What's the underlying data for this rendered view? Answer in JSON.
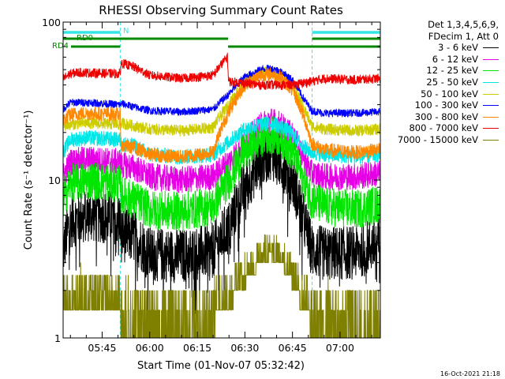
{
  "chart_data": {
    "type": "line",
    "title": "RHESSI Observing Summary Count Rates",
    "xlabel": "Start Time (01-Nov-07 05:32:42)",
    "ylabel": "Count Rate (s⁻¹ detector⁻¹)",
    "yscale": "log",
    "ylim": [
      1,
      100
    ],
    "xlim": [
      "05:32:42",
      "07:12:42"
    ],
    "x_ticks": [
      "05:45",
      "06:00",
      "06:15",
      "06:30",
      "06:45",
      "07:00"
    ],
    "y_ticks": [
      "1",
      "10",
      "100"
    ],
    "legend_header": [
      "Det 1,3,4,5,6,9,",
      "FDecim 1, Att 0"
    ],
    "legend_placement": "top-right",
    "timestamp": "16-Oct-2021 21:18",
    "flag_labels": [
      "N",
      "RD0",
      "RD4"
    ],
    "night_intervals": [
      [
        "05:32:42",
        "05:50:42"
      ],
      [
        "06:51:12",
        "07:12:42"
      ]
    ],
    "flag_bars": [
      {
        "label": "N",
        "color": "#33e6e6",
        "intervals": [
          [
            "05:32:42",
            "05:50:42"
          ],
          [
            "06:51:12",
            "07:12:42"
          ]
        ]
      },
      {
        "label": "RD0",
        "color": "#008800",
        "intervals": [
          [
            "05:32:42",
            "06:24:42"
          ],
          [
            "06:51:12",
            "07:12:42"
          ]
        ]
      },
      {
        "label": "RD4",
        "color": "#008800",
        "intervals": [
          [
            "05:35:12",
            "05:50:42"
          ],
          [
            "06:24:42",
            "06:51:12"
          ],
          [
            "06:51:12",
            "07:12:42"
          ]
        ]
      }
    ],
    "series": [
      {
        "name": "3 - 6 keV",
        "color": "#000000",
        "noise": 0.7,
        "points": [
          [
            "05:32:42",
            3.5
          ],
          [
            "05:35:00",
            5.5
          ],
          [
            "05:40:00",
            6.0
          ],
          [
            "05:50:40",
            5.8
          ],
          [
            "05:51:00",
            4.5
          ],
          [
            "05:55:00",
            4.4
          ],
          [
            "06:00:00",
            3.4
          ],
          [
            "06:10:00",
            3.3
          ],
          [
            "06:20:00",
            3.6
          ],
          [
            "06:25:00",
            5.0
          ],
          [
            "06:30:00",
            9.0
          ],
          [
            "06:35:00",
            13.0
          ],
          [
            "06:38:00",
            15.0
          ],
          [
            "06:41:00",
            13.5
          ],
          [
            "06:45:00",
            10.0
          ],
          [
            "06:48:00",
            6.0
          ],
          [
            "06:51:00",
            3.6
          ],
          [
            "06:55:00",
            3.4
          ],
          [
            "07:05:00",
            3.5
          ],
          [
            "07:12:00",
            4.0
          ]
        ]
      },
      {
        "name": "6 - 12 keV",
        "color": "#e600e6",
        "noise": 0.35,
        "points": [
          [
            "05:32:42",
            10.5
          ],
          [
            "05:35:00",
            13.0
          ],
          [
            "05:40:00",
            13.5
          ],
          [
            "05:50:40",
            13.0
          ],
          [
            "05:51:00",
            12.5
          ],
          [
            "05:55:00",
            12.0
          ],
          [
            "06:00:00",
            10.5
          ],
          [
            "06:10:00",
            10.0
          ],
          [
            "06:20:00",
            10.5
          ],
          [
            "06:25:00",
            13.0
          ],
          [
            "06:30:00",
            17.0
          ],
          [
            "06:35:00",
            22.0
          ],
          [
            "06:38:00",
            24.0
          ],
          [
            "06:41:00",
            22.5
          ],
          [
            "06:45:00",
            19.0
          ],
          [
            "06:48:00",
            14.5
          ],
          [
            "06:51:00",
            11.0
          ],
          [
            "06:55:00",
            10.5
          ],
          [
            "07:05:00",
            10.5
          ],
          [
            "07:12:00",
            11.0
          ]
        ]
      },
      {
        "name": "12 - 25 keV",
        "color": "#00e600",
        "noise": 0.5,
        "points": [
          [
            "05:32:42",
            7.5
          ],
          [
            "05:35:00",
            9.5
          ],
          [
            "05:40:00",
            10.0
          ],
          [
            "05:50:40",
            9.5
          ],
          [
            "05:51:00",
            8.0
          ],
          [
            "05:55:00",
            7.5
          ],
          [
            "06:00:00",
            6.5
          ],
          [
            "06:10:00",
            6.3
          ],
          [
            "06:20:00",
            6.8
          ],
          [
            "06:25:00",
            10.0
          ],
          [
            "06:30:00",
            15.0
          ],
          [
            "06:35:00",
            18.5
          ],
          [
            "06:38:00",
            19.5
          ],
          [
            "06:41:00",
            18.5
          ],
          [
            "06:45:00",
            15.0
          ],
          [
            "06:48:00",
            10.5
          ],
          [
            "06:51:00",
            7.5
          ],
          [
            "06:55:00",
            6.8
          ],
          [
            "07:05:00",
            6.5
          ],
          [
            "07:12:00",
            7.0
          ]
        ]
      },
      {
        "name": "25 - 50 keV",
        "color": "#00e6e6",
        "noise": 0.2,
        "points": [
          [
            "05:32:42",
            15.0
          ],
          [
            "05:35:00",
            18.0
          ],
          [
            "05:40:00",
            18.5
          ],
          [
            "05:50:40",
            18.0
          ],
          [
            "05:51:00",
            17.0
          ],
          [
            "05:55:00",
            16.5
          ],
          [
            "06:00:00",
            14.5
          ],
          [
            "06:10:00",
            14.0
          ],
          [
            "06:20:00",
            14.5
          ],
          [
            "06:25:00",
            17.5
          ],
          [
            "06:30:00",
            21.0
          ],
          [
            "06:35:00",
            22.5
          ],
          [
            "06:38:00",
            23.0
          ],
          [
            "06:41:00",
            22.0
          ],
          [
            "06:45:00",
            19.5
          ],
          [
            "06:48:00",
            16.5
          ],
          [
            "06:51:00",
            15.0
          ],
          [
            "06:55:00",
            14.5
          ],
          [
            "07:05:00",
            14.0
          ],
          [
            "07:12:00",
            14.5
          ]
        ]
      },
      {
        "name": "50 - 100 keV",
        "color": "#cccc00",
        "noise": 0.15,
        "points": [
          [
            "05:32:42",
            22.0
          ],
          [
            "05:35:00",
            22.5
          ],
          [
            "05:40:00",
            23.0
          ],
          [
            "05:50:40",
            22.5
          ],
          [
            "05:51:00",
            23.0
          ],
          [
            "05:55:00",
            22.0
          ],
          [
            "06:00:00",
            21.0
          ],
          [
            "06:10:00",
            20.5
          ],
          [
            "06:20:00",
            21.5
          ],
          [
            "06:25:00",
            30.0
          ],
          [
            "06:30:00",
            42.0
          ],
          [
            "06:35:00",
            48.0
          ],
          [
            "06:38:00",
            49.0
          ],
          [
            "06:41:00",
            47.0
          ],
          [
            "06:45:00",
            40.0
          ],
          [
            "06:48:00",
            30.0
          ],
          [
            "06:51:00",
            22.0
          ],
          [
            "06:55:00",
            21.0
          ],
          [
            "07:05:00",
            20.5
          ],
          [
            "07:12:00",
            21.0
          ]
        ]
      },
      {
        "name": "100 - 300 keV",
        "color": "#0000ff",
        "noise": 0.1,
        "points": [
          [
            "05:32:42",
            28.0
          ],
          [
            "05:35:00",
            31.0
          ],
          [
            "05:40:00",
            31.0
          ],
          [
            "05:50:40",
            30.0
          ],
          [
            "05:51:00",
            30.5
          ],
          [
            "05:55:00",
            29.0
          ],
          [
            "06:00:00",
            27.5
          ],
          [
            "06:10:00",
            27.0
          ],
          [
            "06:20:00",
            28.0
          ],
          [
            "06:25:00",
            35.0
          ],
          [
            "06:30:00",
            45.0
          ],
          [
            "06:35:00",
            50.0
          ],
          [
            "06:38:00",
            51.0
          ],
          [
            "06:41:00",
            49.0
          ],
          [
            "06:45:00",
            43.0
          ],
          [
            "06:48:00",
            34.0
          ],
          [
            "06:51:00",
            27.5
          ],
          [
            "06:55:00",
            26.5
          ],
          [
            "07:05:00",
            26.5
          ],
          [
            "07:12:00",
            27.0
          ]
        ]
      },
      {
        "name": "300 - 800 keV",
        "color": "#ff8800",
        "noise": 0.18,
        "points": [
          [
            "05:32:42",
            24.0
          ],
          [
            "05:35:00",
            26.0
          ],
          [
            "05:40:00",
            26.5
          ],
          [
            "05:50:40",
            26.0
          ],
          [
            "05:51:00",
            16.5
          ],
          [
            "05:55:00",
            16.0
          ],
          [
            "06:00:00",
            14.5
          ],
          [
            "06:10:00",
            14.0
          ],
          [
            "06:20:00",
            15.0
          ],
          [
            "06:25:00",
            27.0
          ],
          [
            "06:30:00",
            40.0
          ],
          [
            "06:35:00",
            46.0
          ],
          [
            "06:38:00",
            47.0
          ],
          [
            "06:41:00",
            45.0
          ],
          [
            "06:45:00",
            37.0
          ],
          [
            "06:48:00",
            27.0
          ],
          [
            "06:51:00",
            17.0
          ],
          [
            "06:55:00",
            15.5
          ],
          [
            "07:05:00",
            15.0
          ],
          [
            "07:12:00",
            15.5
          ]
        ]
      },
      {
        "name": "800 - 7000 keV",
        "color": "#ee0000",
        "noise": 0.12,
        "points": [
          [
            "05:32:42",
            44.0
          ],
          [
            "05:35:00",
            47.0
          ],
          [
            "05:37:00",
            48.0
          ],
          [
            "05:50:40",
            47.0
          ],
          [
            "05:51:00",
            55.0
          ],
          [
            "05:55:00",
            52.0
          ],
          [
            "06:00:00",
            46.0
          ],
          [
            "06:10:00",
            44.0
          ],
          [
            "06:20:00",
            46.0
          ],
          [
            "06:24:30",
            60.0
          ],
          [
            "06:24:50",
            42.0
          ],
          [
            "06:35:00",
            40.0
          ],
          [
            "06:45:00",
            40.0
          ],
          [
            "06:51:00",
            42.0
          ],
          [
            "06:55:00",
            44.0
          ],
          [
            "07:05:00",
            43.0
          ],
          [
            "07:12:00",
            44.0
          ]
        ]
      },
      {
        "name": "7000 - 15000 keV",
        "color": "#808000",
        "noise": 1.2,
        "points": [
          [
            "05:32:42",
            1.6
          ],
          [
            "05:50:40",
            1.5
          ],
          [
            "05:51:00",
            1.1
          ],
          [
            "06:20:00",
            1.0
          ],
          [
            "06:22:00",
            1.5
          ],
          [
            "06:25:00",
            1.3
          ],
          [
            "06:27:00",
            1.9
          ],
          [
            "06:30:00",
            2.2
          ],
          [
            "06:35:00",
            3.0
          ],
          [
            "06:38:00",
            3.3
          ],
          [
            "06:41:00",
            3.0
          ],
          [
            "06:45:00",
            2.2
          ],
          [
            "06:48:00",
            1.6
          ],
          [
            "06:51:00",
            1.1
          ],
          [
            "07:12:00",
            1.0
          ]
        ]
      }
    ]
  }
}
